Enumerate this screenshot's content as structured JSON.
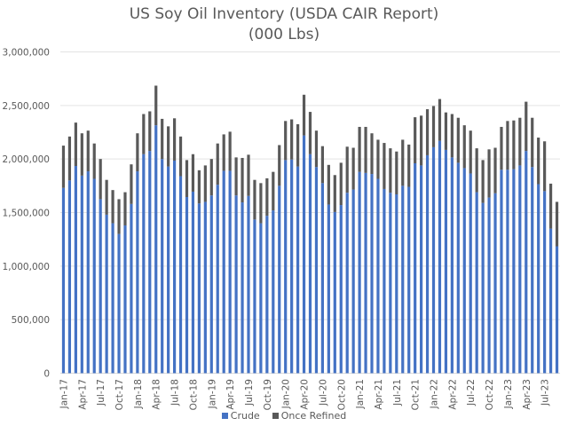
{
  "chart_data": {
    "type": "bar",
    "stacked": true,
    "title": "US Soy Oil Inventory (USDA CAIR Report)",
    "subtitle": "(000 Lbs)",
    "xlabel": "",
    "ylabel": "",
    "ylim": [
      0,
      3000000
    ],
    "y_ticks": [
      0,
      500000,
      1000000,
      1500000,
      2000000,
      2500000,
      3000000
    ],
    "y_tick_labels": [
      "0",
      "500,000",
      "1,000,000",
      "1,500,000",
      "2,000,000",
      "2,500,000",
      "3,000,000"
    ],
    "grid": true,
    "legend_position": "bottom",
    "categories": [
      "Jan-17",
      "Feb-17",
      "Mar-17",
      "Apr-17",
      "May-17",
      "Jun-17",
      "Jul-17",
      "Aug-17",
      "Sep-17",
      "Oct-17",
      "Nov-17",
      "Dec-17",
      "Jan-18",
      "Feb-18",
      "Mar-18",
      "Apr-18",
      "May-18",
      "Jun-18",
      "Jul-18",
      "Aug-18",
      "Sep-18",
      "Oct-18",
      "Nov-18",
      "Dec-18",
      "Jan-19",
      "Feb-19",
      "Mar-19",
      "Apr-19",
      "May-19",
      "Jun-19",
      "Jul-19",
      "Aug-19",
      "Sep-19",
      "Oct-19",
      "Nov-19",
      "Dec-19",
      "Jan-20",
      "Feb-20",
      "Mar-20",
      "Apr-20",
      "May-20",
      "Jun-20",
      "Jul-20",
      "Aug-20",
      "Sep-20",
      "Oct-20",
      "Nov-20",
      "Dec-20",
      "Jan-21",
      "Feb-21",
      "Mar-21",
      "Apr-21",
      "May-21",
      "Jun-21",
      "Jul-21",
      "Aug-21",
      "Sep-21",
      "Oct-21",
      "Nov-21",
      "Dec-21",
      "Jan-22",
      "Feb-22",
      "Mar-22",
      "Apr-22",
      "May-22",
      "Jun-22",
      "Jul-22",
      "Aug-22",
      "Sep-22",
      "Oct-22",
      "Nov-22",
      "Dec-22",
      "Jan-23",
      "Feb-23",
      "Mar-23",
      "Apr-23",
      "May-23",
      "Jun-23",
      "Jul-23",
      "Aug-23",
      "Sep-23"
    ],
    "tick_label_every": 3,
    "series": [
      {
        "name": "Crude",
        "color": "#4472c4",
        "values": [
          1730000,
          1800000,
          1935000,
          1845000,
          1885000,
          1815000,
          1625000,
          1480000,
          1400000,
          1300000,
          1380000,
          1580000,
          1885000,
          2045000,
          2075000,
          2315000,
          2000000,
          1930000,
          1985000,
          1840000,
          1645000,
          1695000,
          1585000,
          1600000,
          1660000,
          1760000,
          1890000,
          1890000,
          1660000,
          1595000,
          1655000,
          1435000,
          1400000,
          1470000,
          1520000,
          1750000,
          1990000,
          1995000,
          1930000,
          2220000,
          2045000,
          1925000,
          1775000,
          1575000,
          1505000,
          1570000,
          1685000,
          1715000,
          1880000,
          1870000,
          1860000,
          1815000,
          1720000,
          1685000,
          1670000,
          1750000,
          1740000,
          1960000,
          1940000,
          2035000,
          2110000,
          2170000,
          2085000,
          2015000,
          1965000,
          1915000,
          1865000,
          1690000,
          1590000,
          1640000,
          1680000,
          1900000,
          1900000,
          1905000,
          1940000,
          2075000,
          1925000,
          1765000,
          1700000,
          1350000,
          1185000
        ]
      },
      {
        "name": "Once Refined",
        "color": "#595959",
        "values": [
          395000,
          410000,
          405000,
          395000,
          380000,
          330000,
          375000,
          325000,
          310000,
          325000,
          310000,
          370000,
          355000,
          375000,
          370000,
          370000,
          375000,
          375000,
          395000,
          370000,
          345000,
          350000,
          310000,
          340000,
          340000,
          385000,
          340000,
          365000,
          355000,
          415000,
          385000,
          370000,
          375000,
          350000,
          360000,
          380000,
          365000,
          375000,
          395000,
          380000,
          395000,
          340000,
          345000,
          370000,
          345000,
          395000,
          430000,
          390000,
          420000,
          430000,
          380000,
          365000,
          430000,
          415000,
          400000,
          430000,
          395000,
          430000,
          465000,
          430000,
          385000,
          390000,
          350000,
          405000,
          420000,
          400000,
          400000,
          410000,
          400000,
          450000,
          425000,
          400000,
          455000,
          455000,
          445000,
          460000,
          460000,
          435000,
          465000,
          420000,
          415000
        ]
      }
    ]
  }
}
